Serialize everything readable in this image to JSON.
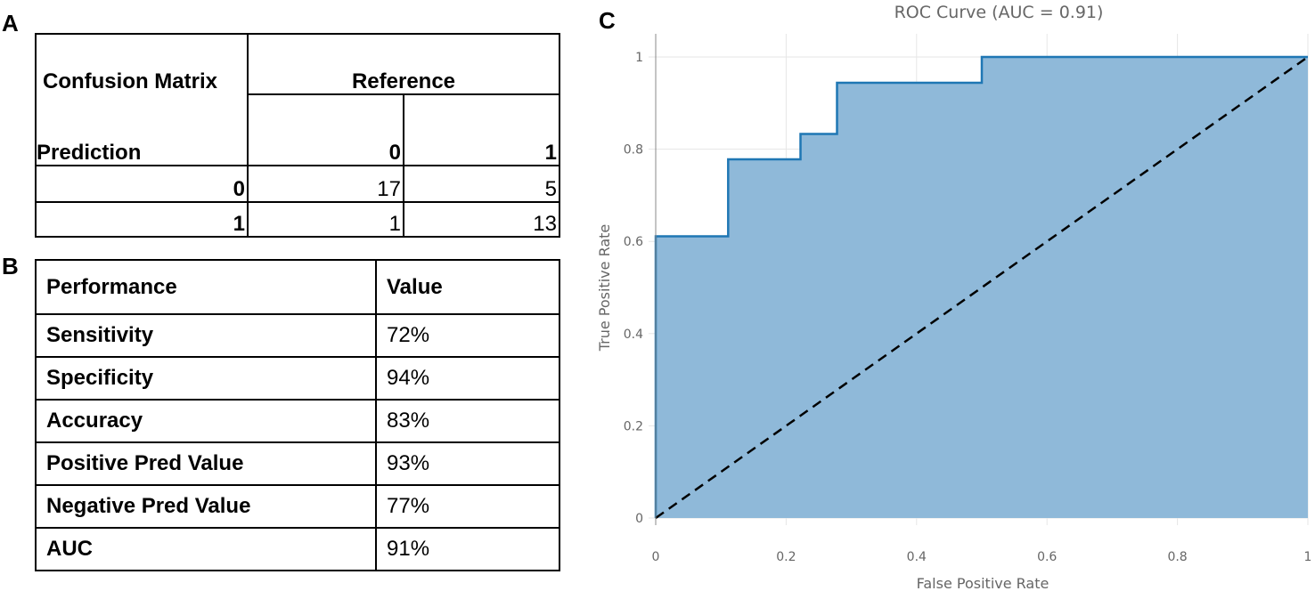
{
  "panels": {
    "a": "A",
    "b": "B",
    "c": "C"
  },
  "confusion_matrix": {
    "title": "Confusion Matrix",
    "reference_label": "Reference",
    "prediction_label": "Prediction",
    "col_headers": [
      "0",
      "1"
    ],
    "rows": [
      {
        "label": "0",
        "values": [
          "17",
          "5"
        ]
      },
      {
        "label": "1",
        "values": [
          "1",
          "13"
        ]
      }
    ]
  },
  "performance": {
    "header_metric": "Performance",
    "header_value": "Value",
    "rows": [
      {
        "metric": "Sensitivity",
        "value": "72%"
      },
      {
        "metric": "Specificity",
        "value": "94%"
      },
      {
        "metric": "Accuracy",
        "value": "83%"
      },
      {
        "metric": "Positive Pred Value",
        "value": "93%"
      },
      {
        "metric": "Negative Pred Value",
        "value": "77%"
      },
      {
        "metric": "AUC",
        "value": "91%"
      }
    ]
  },
  "chart_data": {
    "type": "area",
    "title": "ROC Curve (AUC = 0.91)",
    "xlabel": "False Positive Rate",
    "ylabel": "True Positive Rate",
    "xlim": [
      0,
      1
    ],
    "ylim": [
      0,
      1
    ],
    "x_ticks": [
      "0",
      "0.2",
      "0.4",
      "0.6",
      "0.8",
      "1"
    ],
    "y_ticks": [
      "0",
      "0.2",
      "0.4",
      "0.6",
      "0.8",
      "1"
    ],
    "grid": true,
    "series": [
      {
        "name": "ROC",
        "x": [
          0,
          0,
          0.111,
          0.111,
          0.222,
          0.222,
          0.278,
          0.278,
          0.5,
          0.5,
          1
        ],
        "y": [
          0,
          0.611,
          0.611,
          0.778,
          0.778,
          0.833,
          0.833,
          0.944,
          0.944,
          1,
          1
        ],
        "fill": "#8fb9d9",
        "color": "#1f77b4"
      },
      {
        "name": "chance",
        "x": [
          0,
          1
        ],
        "y": [
          0,
          1
        ],
        "color": "#000000",
        "dash": true
      }
    ]
  }
}
